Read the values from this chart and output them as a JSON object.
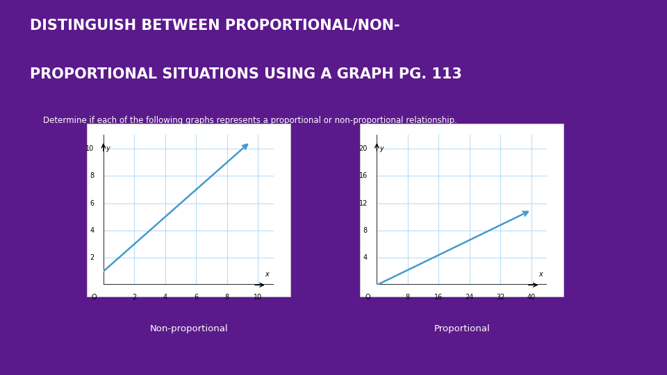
{
  "title_line1": "DISTINGUISH BETWEEN PROPORTIONAL/NON-",
  "title_line2": "PROPORTIONAL SITUATIONS USING A GRAPH PG. 113",
  "subtitle": "Determine if each of the following graphs represents a proportional or non-proportional relationship.",
  "bg_color": "#5b1a8b",
  "grid_color": "#b8ddf5",
  "line_color": "#4499cc",
  "title_color": "#ffffff",
  "subtitle_color": "#ffffff",
  "chart1": {
    "x_start": 0,
    "y_start": 1,
    "x_end": 9.5,
    "y_end": 10.5,
    "xlim": [
      0,
      11
    ],
    "ylim": [
      0,
      11
    ],
    "xticks": [
      2,
      4,
      6,
      8,
      10
    ],
    "yticks": [
      2,
      4,
      6,
      8,
      10
    ],
    "xlabel": "x",
    "ylabel": "y",
    "origin_label": "O",
    "label": "Non-proportional"
  },
  "chart2": {
    "x_start": 0,
    "y_start": 0,
    "x_end": 40,
    "y_end": 11,
    "xlim": [
      0,
      44
    ],
    "ylim": [
      0,
      22
    ],
    "xticks": [
      8,
      16,
      24,
      32,
      40
    ],
    "yticks": [
      4,
      8,
      12,
      16,
      20
    ],
    "xlabel": "x",
    "ylabel": "y",
    "origin_label": "O",
    "label": "Proportional"
  }
}
